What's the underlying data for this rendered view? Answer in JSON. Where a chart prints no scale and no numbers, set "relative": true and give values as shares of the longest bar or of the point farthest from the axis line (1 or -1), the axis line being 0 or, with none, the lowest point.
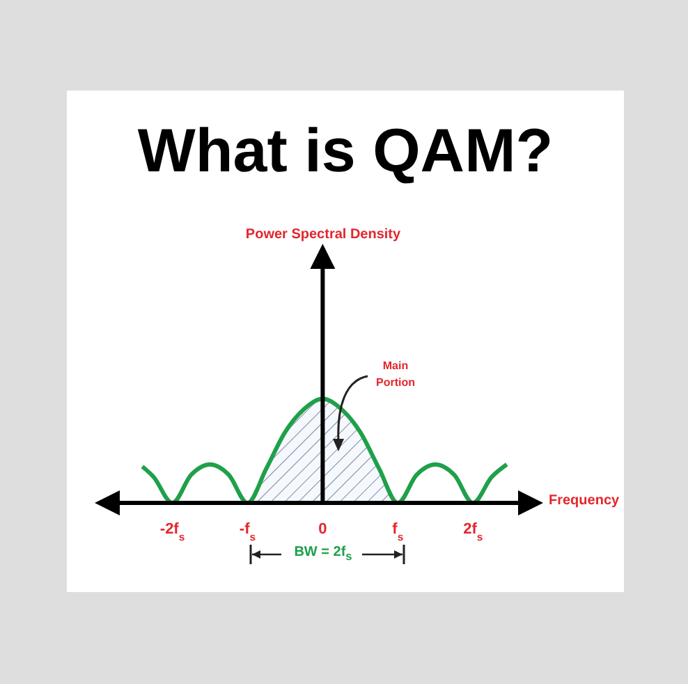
{
  "chart_data": {
    "type": "line",
    "title": "What is QAM?",
    "xlabel": "Frequency",
    "relative": true,
    "annotations": [
      "Main Portion",
      "BW = 2f$_{s}$",
      "Power Spectral Density"
    ],
    "xlim": [
      -2.7,
      2.6
    ],
    "xticks": [
      {
        "value": -2,
        "label": "-2f$_{s}$"
      },
      {
        "value": -1,
        "label": "-f$_{s}$"
      },
      0,
      {
        "value": 1,
        "label": "f$_{s}$"
      },
      {
        "value": 2,
        "label": "2f$_{s}$"
      }
    ],
    "ref_lines": [
      {
        "axis": "x",
        "value": 0,
        "color": "#000000"
      }
    ],
    "series": [
      {
        "type": "line",
        "color": "#1fa04a",
        "x": [
          -2.4,
          -2.25,
          -2,
          -1.75,
          -1.5,
          -1.25,
          -1,
          -0.75,
          -0.5,
          -0.25,
          0,
          0.25,
          0.5,
          0.75,
          1,
          1.25,
          1.5,
          1.75,
          2,
          2.25,
          2.45
        ],
        "values": [
          0.35,
          0.25,
          0,
          0.27,
          0.37,
          0.27,
          0,
          0.33,
          0.68,
          0.9,
          1,
          0.9,
          0.68,
          0.33,
          0,
          0.27,
          0.37,
          0.27,
          0,
          0.25,
          0.37
        ]
      },
      {
        "type": "area",
        "color": "#2b3a67",
        "x": [
          -1,
          -0.75,
          -0.5,
          -0.25,
          0,
          0.25,
          0.5,
          0.75,
          1
        ],
        "values": [
          0,
          0.33,
          0.68,
          0.9,
          1,
          0.9,
          0.68,
          0.33,
          0
        ]
      }
    ]
  }
}
